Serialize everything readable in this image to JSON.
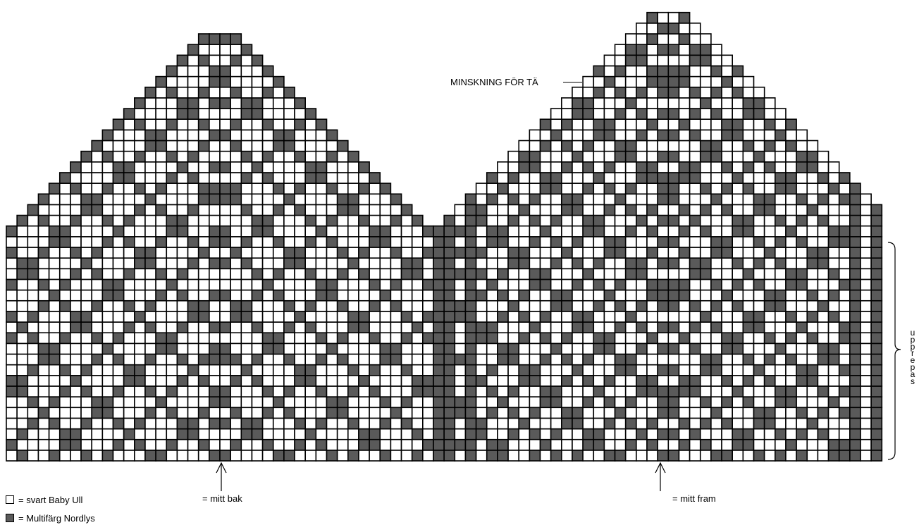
{
  "diagram": {
    "colors": {
      "light": "#ffffff",
      "dark": "#5a5a5a",
      "grid": "#000000"
    },
    "labels": {
      "toe_decrease": "MINSKNING FÖR TÄ",
      "center_back": "= mitt bak",
      "center_front": "= mitt fram",
      "repeat": "upprepas"
    },
    "legend": [
      {
        "symbol": "light-square",
        "text": "= svart Baby Ull"
      },
      {
        "symbol": "dark-square",
        "text": "= Multifärg Nordlys"
      }
    ]
  }
}
